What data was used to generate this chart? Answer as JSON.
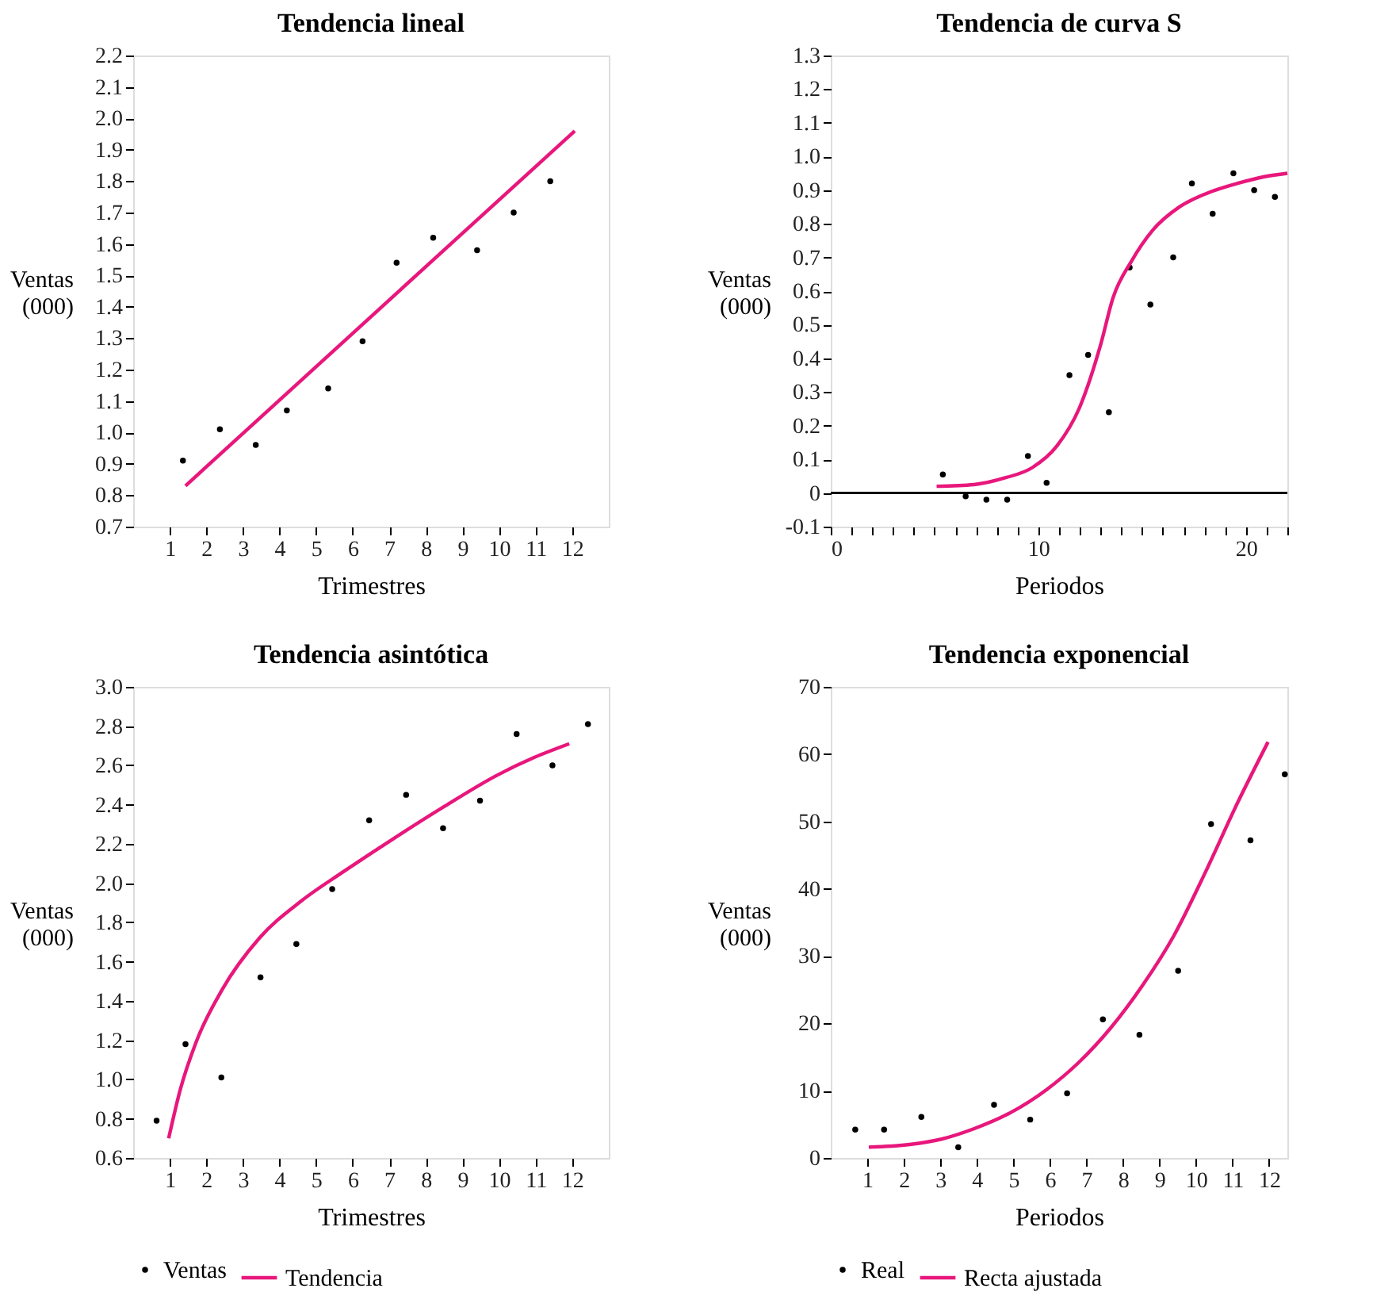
{
  "chart_data": [
    {
      "type": "scatter",
      "title": "Tendencia lineal",
      "xlabel": "Trimestres",
      "ylabel": "Ventas\n(000)",
      "legend": false,
      "grid": false,
      "xlim": [
        0,
        13
      ],
      "xticks": [
        1,
        2,
        3,
        4,
        5,
        6,
        7,
        8,
        9,
        10,
        11,
        12
      ],
      "ylim": [
        0.7,
        2.2
      ],
      "yticks": [
        0.7,
        0.8,
        0.9,
        {
          "value": 1,
          "label": "1.0"
        },
        1.1,
        1.2,
        1.3,
        1.4,
        1.5,
        1.6,
        1.7,
        1.8,
        1.9,
        {
          "value": 2,
          "label": "2.0"
        },
        2.1,
        2.2
      ],
      "series": [
        {
          "marker": "circle",
          "color": "#000000",
          "x": [
            1.36,
            2.37,
            3.35,
            4.2,
            5.33,
            6.27,
            7.2,
            8.2,
            9.4,
            10.4,
            11.4
          ],
          "values": [
            0.91,
            1.01,
            0.96,
            1.07,
            1.14,
            1.29,
            1.54,
            1.62,
            1.58,
            1.7,
            1.8
          ]
        },
        {
          "type": "line",
          "marker": "none",
          "line_style": "solid",
          "color": "#e8177c",
          "x": [
            1.43,
            12.07
          ],
          "values": [
            0.83,
            1.96
          ]
        }
      ]
    },
    {
      "type": "scatter",
      "title": "Tendencia de curva S",
      "xlabel": "Periodos",
      "ylabel": "Ventas\n(000)",
      "legend": false,
      "grid": false,
      "xlim": [
        0,
        22
      ],
      "xticks": [
        0,
        {
          "value": 1,
          "label": null
        },
        {
          "value": 2,
          "label": null
        },
        {
          "value": 3,
          "label": null
        },
        {
          "value": 4,
          "label": null
        },
        {
          "value": 5,
          "label": null
        },
        {
          "value": 6,
          "label": null
        },
        {
          "value": 7,
          "label": null
        },
        {
          "value": 8,
          "label": null
        },
        {
          "value": 9,
          "label": null
        },
        10,
        {
          "value": 11,
          "label": null
        },
        {
          "value": 12,
          "label": null
        },
        {
          "value": 13,
          "label": null
        },
        {
          "value": 14,
          "label": null
        },
        {
          "value": 15,
          "label": null
        },
        {
          "value": 16,
          "label": null
        },
        {
          "value": 17,
          "label": null
        },
        {
          "value": 18,
          "label": null
        },
        {
          "value": 19,
          "label": null
        },
        20,
        {
          "value": 21,
          "label": null
        },
        {
          "value": 22,
          "label": null
        }
      ],
      "ylim": [
        -0.1,
        1.3
      ],
      "yticks": [
        -0.1,
        0,
        0.1,
        0.2,
        0.3,
        0.4,
        0.5,
        0.6,
        0.7,
        0.8,
        0.9,
        {
          "value": 1,
          "label": "1.0"
        },
        1.1,
        1.2,
        1.3
      ],
      "ref_lines": [
        {
          "axis": "y",
          "value": 0,
          "color": "#000000"
        }
      ],
      "series": [
        {
          "marker": "circle",
          "color": "#000000",
          "x": [
            5.4,
            6.5,
            7.5,
            8.5,
            9.5,
            10.4,
            11.5,
            12.4,
            13.4,
            14.4,
            15.4,
            16.5,
            17.4,
            18.4,
            19.4,
            20.4,
            21.4
          ],
          "values": [
            0.055,
            -0.01,
            -0.02,
            -0.02,
            0.11,
            0.03,
            0.35,
            0.41,
            0.24,
            0.67,
            0.56,
            0.7,
            0.92,
            0.83,
            0.95,
            0.9,
            0.88
          ]
        },
        {
          "type": "line",
          "marker": "none",
          "line_style": "solid",
          "color": "#e8177c",
          "x": [
            5.1,
            6.9,
            8.4,
            9.7,
            10.9,
            11.96,
            13.0,
            13.6,
            14.5,
            15.5,
            16.8,
            18.1,
            19.6,
            20.9,
            22.0
          ],
          "values": [
            0.02,
            0.025,
            0.045,
            0.075,
            0.14,
            0.25,
            0.44,
            0.58,
            0.69,
            0.78,
            0.85,
            0.89,
            0.92,
            0.94,
            0.95
          ]
        }
      ]
    },
    {
      "type": "scatter",
      "title": "Tendencia asintótica",
      "xlabel": "Trimestres",
      "ylabel": "Ventas\n(000)",
      "legend": "bottom",
      "grid": false,
      "xlim": [
        0,
        13
      ],
      "xticks": [
        1,
        2,
        3,
        4,
        5,
        6,
        7,
        8,
        9,
        10,
        11,
        12
      ],
      "ylim": [
        0.6,
        3.0
      ],
      "yticks": [
        0.6,
        0.8,
        {
          "value": 1,
          "label": "1.0"
        },
        1.2,
        1.4,
        1.6,
        1.8,
        {
          "value": 2,
          "label": "2.0"
        },
        2.2,
        2.4,
        2.6,
        2.8,
        {
          "value": 3,
          "label": "3.0"
        }
      ],
      "series": [
        {
          "name": "Ventas",
          "marker": "circle",
          "color": "#000000",
          "x": [
            0.64,
            1.43,
            2.41,
            3.48,
            4.46,
            5.44,
            6.45,
            7.46,
            8.47,
            9.48,
            10.48,
            11.46,
            12.43
          ],
          "values": [
            0.79,
            1.18,
            1.01,
            1.52,
            1.69,
            1.97,
            2.32,
            2.45,
            2.28,
            2.42,
            2.76,
            2.6,
            2.81
          ]
        },
        {
          "type": "line",
          "name": "Tendencia",
          "marker": "none",
          "line_style": "solid",
          "color": "#e8177c",
          "x": [
            0.97,
            1.29,
            1.72,
            2.44,
            3.45,
            4.6,
            5.76,
            7.06,
            8.5,
            9.95,
            10.96,
            11.92
          ],
          "values": [
            0.7,
            0.95,
            1.19,
            1.46,
            1.72,
            1.91,
            2.06,
            2.22,
            2.39,
            2.55,
            2.64,
            2.71
          ]
        }
      ]
    },
    {
      "type": "scatter",
      "title": "Tendencia exponencial",
      "xlabel": "Periodos",
      "ylabel": "Ventas\n(000)",
      "legend": "bottom",
      "grid": false,
      "xlim": [
        0,
        12.5
      ],
      "xticks": [
        1,
        2,
        3,
        4,
        5,
        6,
        7,
        8,
        9,
        10,
        11,
        12
      ],
      "ylim": [
        0,
        70
      ],
      "yticks": [
        0,
        10,
        20,
        30,
        40,
        50,
        60,
        70
      ],
      "series": [
        {
          "name": "Real",
          "marker": "circle",
          "color": "#000000",
          "x": [
            0.67,
            1.46,
            2.48,
            3.49,
            4.47,
            5.46,
            6.47,
            7.45,
            8.45,
            9.51,
            10.41,
            11.49,
            12.43
          ],
          "values": [
            4.2,
            4.2,
            6.1,
            1.6,
            7.9,
            5.7,
            9.6,
            20.6,
            18.3,
            27.8,
            49.6,
            47.2,
            57.0
          ]
        },
        {
          "type": "line",
          "name": "Recta ajustada",
          "marker": "none",
          "line_style": "solid",
          "color": "#e8177c",
          "x": [
            1.04,
            2.16,
            3.03,
            3.9,
            4.91,
            5.92,
            6.79,
            7.66,
            8.53,
            9.39,
            10.26,
            11.13,
            11.97
          ],
          "values": [
            1.6,
            2.0,
            2.8,
            4.3,
            6.7,
            10.2,
            14.2,
            19.3,
            25.6,
            33.0,
            42.5,
            52.7,
            61.8
          ]
        }
      ]
    }
  ]
}
